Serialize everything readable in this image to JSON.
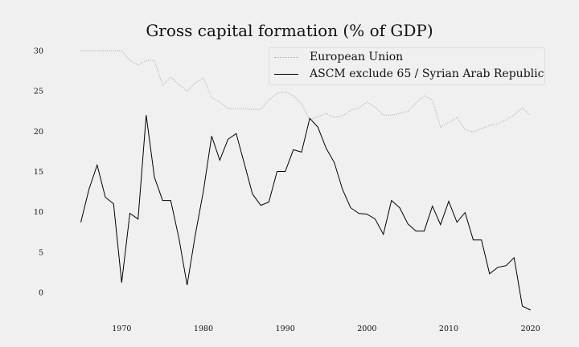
{
  "chart_data": {
    "type": "line",
    "title": "Gross capital formation (% of GDP)",
    "xlabel": "",
    "ylabel": "",
    "xlim": [
      1962,
      2022
    ],
    "ylim": [
      -2.8,
      31.5
    ],
    "x_ticks": [
      1970,
      1980,
      1990,
      2000,
      2010,
      2020
    ],
    "y_ticks": [
      0,
      5,
      10,
      15,
      20,
      25,
      30
    ],
    "grid": false,
    "legend_position": "top-right",
    "x": [
      1965,
      1966,
      1967,
      1968,
      1969,
      1970,
      1971,
      1972,
      1973,
      1974,
      1975,
      1976,
      1977,
      1978,
      1979,
      1980,
      1981,
      1982,
      1983,
      1984,
      1985,
      1986,
      1987,
      1988,
      1989,
      1990,
      1991,
      1992,
      1993,
      1994,
      1995,
      1996,
      1997,
      1998,
      1999,
      2000,
      2001,
      2002,
      2003,
      2004,
      2005,
      2006,
      2007,
      2008,
      2009,
      2010,
      2011,
      2012,
      2013,
      2014,
      2015,
      2016,
      2017,
      2018,
      2019,
      2020
    ],
    "series": [
      {
        "name": "European Union",
        "color": "#aaaaaa",
        "style": "dotted",
        "values": [
          30.0,
          30.0,
          30.0,
          30.0,
          30.0,
          30.0,
          28.8,
          28.2,
          28.8,
          28.8,
          25.7,
          26.7,
          25.8,
          25.0,
          26.0,
          26.6,
          24.2,
          23.6,
          22.8,
          22.8,
          22.8,
          22.7,
          22.7,
          23.9,
          24.7,
          24.9,
          24.4,
          23.4,
          21.4,
          21.8,
          22.2,
          21.7,
          21.9,
          22.6,
          22.9,
          23.6,
          23.0,
          22.0,
          22.0,
          22.2,
          22.5,
          23.5,
          24.4,
          23.9,
          20.5,
          21.1,
          21.7,
          20.2,
          19.9,
          20.3,
          20.7,
          20.9,
          21.4,
          22.0,
          22.9,
          22.0
        ]
      },
      {
        "name": "ASCM exclude 65 / Syrian Arab Republic",
        "color": "#000000",
        "style": "solid",
        "values": [
          8.7,
          12.8,
          15.8,
          11.8,
          11.0,
          1.2,
          9.8,
          9.1,
          22.0,
          14.3,
          11.4,
          11.4,
          6.7,
          0.9,
          7.1,
          12.6,
          19.4,
          16.4,
          19.0,
          19.7,
          16.0,
          12.2,
          10.8,
          11.2,
          15.0,
          15.0,
          17.7,
          17.4,
          21.6,
          20.5,
          17.9,
          16.1,
          12.8,
          10.5,
          9.8,
          9.7,
          9.1,
          7.2,
          11.4,
          10.5,
          8.5,
          7.6,
          7.6,
          10.7,
          8.4,
          11.3,
          8.7,
          9.9,
          6.5,
          6.5,
          2.3,
          3.1,
          3.3,
          4.3,
          -1.7,
          -2.2
        ]
      }
    ]
  }
}
